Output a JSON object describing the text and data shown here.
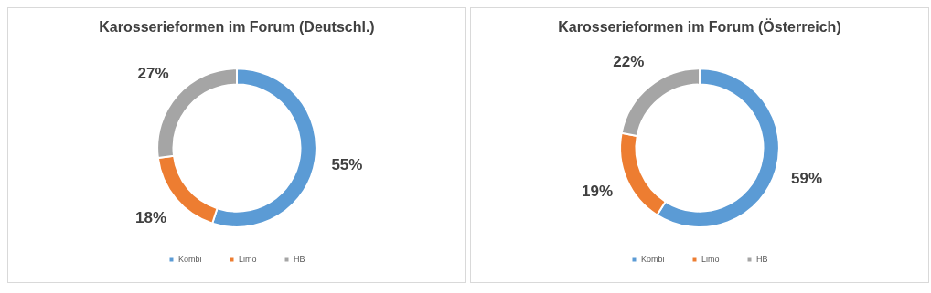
{
  "chart_data": [
    {
      "type": "donut",
      "title": "Karosserieformen im Forum (Deutschl.)",
      "categories": [
        "Kombi",
        "Limo",
        "HB"
      ],
      "values": [
        55,
        18,
        27
      ],
      "colors": [
        "#5b9bd5",
        "#ed7d31",
        "#a5a5a5"
      ],
      "value_labels": [
        "55%",
        "18%",
        "27%"
      ],
      "legend": "bottom"
    },
    {
      "type": "donut",
      "title": "Karosserieformen im Forum (Österreich)",
      "categories": [
        "Kombi",
        "Limo",
        "HB"
      ],
      "values": [
        59,
        19,
        22
      ],
      "colors": [
        "#5b9bd5",
        "#ed7d31",
        "#a5a5a5"
      ],
      "value_labels": [
        "59%",
        "19%",
        "22%"
      ],
      "legend": "bottom"
    }
  ]
}
